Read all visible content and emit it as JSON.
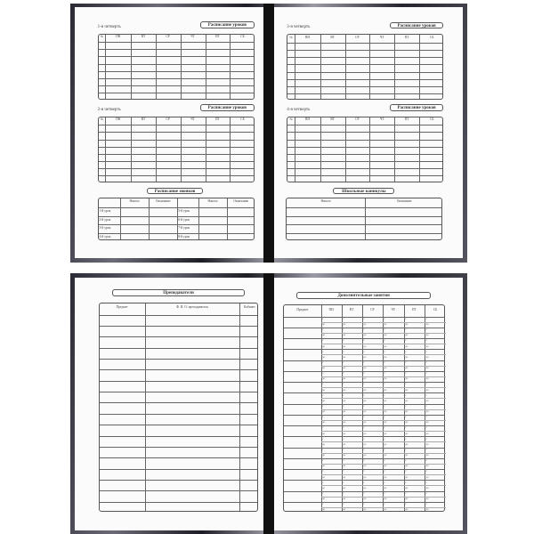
{
  "top_left": {
    "q1": {
      "label": "1-я четверть",
      "title": "Расписание уроков"
    },
    "q2": {
      "label": "2-я четверть",
      "title": "Расписание уроков"
    },
    "bells": {
      "title": "Расписание звонков",
      "headers": [
        "",
        "Начало",
        "Окончание",
        "",
        "Начало",
        "Окончание"
      ],
      "lessons_left": [
        "1-й урок",
        "2-й урок",
        "3-й урок",
        "4-й урок"
      ],
      "lessons_right": [
        "5-й урок",
        "6-й урок",
        "7-й урок",
        "8-й урок"
      ]
    }
  },
  "top_right": {
    "q3": {
      "label": "3-я четверть",
      "title": "Расписание уроков"
    },
    "q4": {
      "label": "4-я четверть",
      "title": "Расписание уроков"
    },
    "holidays": {
      "title": "Школьные каникулы",
      "headers": [
        "Начало",
        "Окончание"
      ]
    }
  },
  "schedule_headers": [
    "№",
    "ПН",
    "ВТ",
    "СР",
    "ЧТ",
    "ПТ",
    "СБ"
  ],
  "bottom_left": {
    "title": "Преподаватели",
    "headers": [
      "Предмет",
      "Ф. И. О. преподавателя",
      "Кабинет"
    ]
  },
  "bottom_right": {
    "title": "Дополнительные занятия",
    "headers": [
      "Предмет",
      "ПН",
      "ВТ",
      "СР",
      "ЧТ",
      "ПТ",
      "СБ"
    ],
    "from_label": "с",
    "to_label": "до"
  }
}
